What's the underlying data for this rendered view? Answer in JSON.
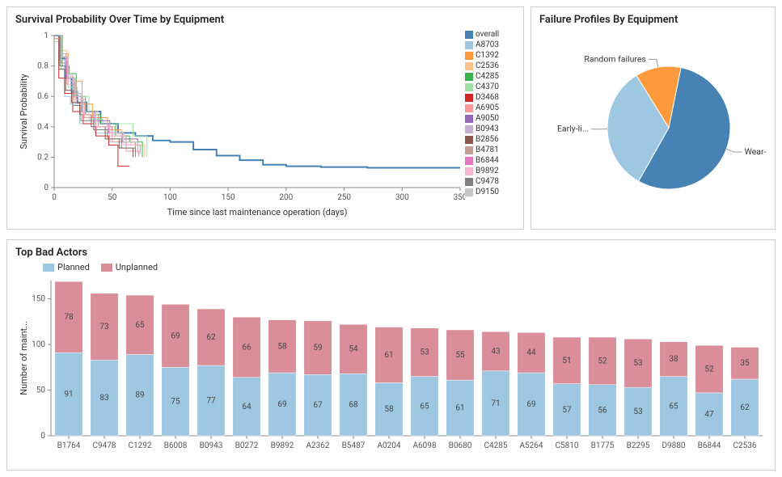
{
  "survival": {
    "title": "Survival Probability Over Time by Equipment",
    "type": "line",
    "xlabel": "Time since last maintenance operation (days)",
    "ylabel": "Survival Probability",
    "xlim": [
      0,
      350
    ],
    "xtick_step": 50,
    "ylim": [
      0,
      1
    ],
    "ytick_step": 0.2,
    "background_color": "#ffffff",
    "grid_on": false,
    "legend": [
      {
        "label": "overall",
        "color": "#4682b4"
      },
      {
        "label": "A8703",
        "color": "#9ec7e2"
      },
      {
        "label": "C1392",
        "color": "#ff9a3c"
      },
      {
        "label": "C2536",
        "color": "#ffc38a"
      },
      {
        "label": "C4285",
        "color": "#3cb44b"
      },
      {
        "label": "C4370",
        "color": "#a3e0a9"
      },
      {
        "label": "D3468",
        "color": "#d62728"
      },
      {
        "label": "A6905",
        "color": "#ff9999"
      },
      {
        "label": "A9050",
        "color": "#9467bd"
      },
      {
        "label": "B0943",
        "color": "#c5b0d5"
      },
      {
        "label": "B2856",
        "color": "#8c564b"
      },
      {
        "label": "B4781",
        "color": "#c49c94"
      },
      {
        "label": "B6844",
        "color": "#e377c2"
      },
      {
        "label": "B9892",
        "color": "#f7b6d2"
      },
      {
        "label": "C9478",
        "color": "#7f7f7f"
      },
      {
        "label": "D9150",
        "color": "#c7c7c7"
      }
    ],
    "series": [
      {
        "label": "overall",
        "color": "#4682b4",
        "width": 2.0,
        "points": [
          [
            0,
            1
          ],
          [
            5,
            0.85
          ],
          [
            10,
            0.72
          ],
          [
            15,
            0.63
          ],
          [
            20,
            0.56
          ],
          [
            28,
            0.5
          ],
          [
            40,
            0.42
          ],
          [
            55,
            0.36
          ],
          [
            70,
            0.34
          ],
          [
            85,
            0.31
          ],
          [
            100,
            0.3
          ],
          [
            120,
            0.25
          ],
          [
            140,
            0.21
          ],
          [
            160,
            0.18
          ],
          [
            180,
            0.15
          ],
          [
            200,
            0.14
          ],
          [
            230,
            0.135
          ],
          [
            270,
            0.13
          ],
          [
            310,
            0.13
          ],
          [
            350,
            0.13
          ]
        ]
      },
      {
        "label": "A8703",
        "color": "#9ec7e2",
        "width": 1.0,
        "points": [
          [
            0,
            1
          ],
          [
            4,
            0.82
          ],
          [
            9,
            0.6
          ],
          [
            14,
            0.55
          ],
          [
            22,
            0.42
          ],
          [
            35,
            0.36
          ],
          [
            48,
            0.3
          ],
          [
            60,
            0.28
          ],
          [
            72,
            0.22
          ]
        ]
      },
      {
        "label": "C1392",
        "color": "#ff9a3c",
        "width": 1.0,
        "points": [
          [
            0,
            0.98
          ],
          [
            6,
            0.88
          ],
          [
            12,
            0.7
          ],
          [
            18,
            0.7
          ],
          [
            24,
            0.55
          ],
          [
            33,
            0.46
          ],
          [
            46,
            0.38
          ],
          [
            58,
            0.3
          ],
          [
            70,
            0.25
          ]
        ]
      },
      {
        "label": "C2536",
        "color": "#ffc38a",
        "width": 1.0,
        "points": [
          [
            0,
            1
          ],
          [
            5,
            0.9
          ],
          [
            11,
            0.73
          ],
          [
            17,
            0.58
          ],
          [
            25,
            0.5
          ],
          [
            38,
            0.4
          ],
          [
            52,
            0.32
          ],
          [
            66,
            0.28
          ],
          [
            78,
            0.2
          ]
        ]
      },
      {
        "label": "C4285",
        "color": "#3cb44b",
        "width": 1.0,
        "points": [
          [
            0,
            1
          ],
          [
            7,
            0.8
          ],
          [
            13,
            0.75
          ],
          [
            19,
            0.6
          ],
          [
            27,
            0.48
          ],
          [
            40,
            0.42
          ],
          [
            53,
            0.34
          ],
          [
            65,
            0.3
          ],
          [
            76,
            0.2
          ]
        ]
      },
      {
        "label": "C4370",
        "color": "#a3e0a9",
        "width": 1.0,
        "points": [
          [
            0,
            0.96
          ],
          [
            6,
            0.78
          ],
          [
            12,
            0.66
          ],
          [
            20,
            0.6
          ],
          [
            30,
            0.45
          ],
          [
            42,
            0.42
          ],
          [
            55,
            0.42
          ],
          [
            68,
            0.34
          ],
          [
            80,
            0.2
          ]
        ]
      },
      {
        "label": "D3468",
        "color": "#d62728",
        "width": 1.0,
        "points": [
          [
            0,
            1
          ],
          [
            4,
            0.72
          ],
          [
            9,
            0.62
          ],
          [
            16,
            0.5
          ],
          [
            25,
            0.42
          ],
          [
            36,
            0.34
          ],
          [
            47,
            0.28
          ],
          [
            55,
            0.14
          ],
          [
            65,
            0.14
          ]
        ]
      },
      {
        "label": "A6905",
        "color": "#ff9999",
        "width": 1.0,
        "points": [
          [
            0,
            1
          ],
          [
            5,
            0.84
          ],
          [
            11,
            0.68
          ],
          [
            18,
            0.56
          ],
          [
            26,
            0.46
          ],
          [
            38,
            0.4
          ],
          [
            50,
            0.3
          ],
          [
            62,
            0.24
          ],
          [
            73,
            0.2
          ]
        ]
      },
      {
        "label": "A9050",
        "color": "#9467bd",
        "width": 1.0,
        "points": [
          [
            0,
            1
          ],
          [
            6,
            0.86
          ],
          [
            12,
            0.72
          ],
          [
            18,
            0.6
          ],
          [
            24,
            0.5
          ],
          [
            34,
            0.44
          ],
          [
            48,
            0.36
          ],
          [
            60,
            0.32
          ],
          [
            72,
            0.26
          ]
        ]
      },
      {
        "label": "B0943",
        "color": "#c5b0d5",
        "width": 1.0,
        "points": [
          [
            0,
            1
          ],
          [
            5,
            0.88
          ],
          [
            10,
            0.74
          ],
          [
            16,
            0.62
          ],
          [
            23,
            0.5
          ],
          [
            34,
            0.42
          ],
          [
            46,
            0.36
          ],
          [
            58,
            0.3
          ],
          [
            70,
            0.24
          ]
        ]
      },
      {
        "label": "B2856",
        "color": "#8c564b",
        "width": 1.0,
        "points": [
          [
            0,
            1
          ],
          [
            4,
            0.78
          ],
          [
            9,
            0.64
          ],
          [
            15,
            0.56
          ],
          [
            22,
            0.48
          ],
          [
            32,
            0.4
          ],
          [
            44,
            0.32
          ],
          [
            56,
            0.26
          ],
          [
            68,
            0.2
          ]
        ]
      },
      {
        "label": "B4781",
        "color": "#c49c94",
        "width": 1.0,
        "points": [
          [
            0,
            0.98
          ],
          [
            6,
            0.82
          ],
          [
            12,
            0.7
          ],
          [
            19,
            0.58
          ],
          [
            27,
            0.48
          ],
          [
            38,
            0.4
          ],
          [
            50,
            0.34
          ],
          [
            62,
            0.28
          ],
          [
            74,
            0.22
          ]
        ]
      },
      {
        "label": "B6844",
        "color": "#e377c2",
        "width": 1.0,
        "points": [
          [
            0,
            1
          ],
          [
            5,
            0.86
          ],
          [
            11,
            0.72
          ],
          [
            17,
            0.6
          ],
          [
            24,
            0.5
          ],
          [
            35,
            0.42
          ],
          [
            47,
            0.36
          ],
          [
            59,
            0.3
          ],
          [
            70,
            0.24
          ]
        ]
      },
      {
        "label": "B9892",
        "color": "#f7b6d2",
        "width": 1.0,
        "points": [
          [
            0,
            1
          ],
          [
            6,
            0.84
          ],
          [
            12,
            0.7
          ],
          [
            18,
            0.58
          ],
          [
            25,
            0.48
          ],
          [
            36,
            0.4
          ],
          [
            48,
            0.34
          ],
          [
            60,
            0.28
          ],
          [
            72,
            0.22
          ]
        ]
      },
      {
        "label": "C9478",
        "color": "#7f7f7f",
        "width": 1.0,
        "points": [
          [
            0,
            1
          ],
          [
            5,
            0.8
          ],
          [
            10,
            0.64
          ],
          [
            16,
            0.54
          ],
          [
            23,
            0.44
          ],
          [
            34,
            0.38
          ],
          [
            46,
            0.32
          ],
          [
            58,
            0.26
          ],
          [
            70,
            0.2
          ]
        ]
      },
      {
        "label": "D9150",
        "color": "#c7c7c7",
        "width": 1.0,
        "points": [
          [
            0,
            1
          ],
          [
            6,
            0.86
          ],
          [
            12,
            0.72
          ],
          [
            18,
            0.6
          ],
          [
            25,
            0.5
          ],
          [
            36,
            0.42
          ],
          [
            48,
            0.36
          ],
          [
            60,
            0.3
          ],
          [
            72,
            0.24
          ]
        ]
      }
    ]
  },
  "failure": {
    "title": "Failure Profiles By Equipment",
    "type": "pie",
    "background_color": "#ffffff",
    "slices": [
      {
        "label": "Wear-...",
        "value": 55,
        "color": "#4682b4"
      },
      {
        "label": "Early-li...",
        "value": 33,
        "color": "#9ec7e2"
      },
      {
        "label": "Random failures",
        "value": 12,
        "color": "#ff9a3c"
      }
    ],
    "label_fontsize": 10.5
  },
  "badactors": {
    "title": "Top Bad Actors",
    "type": "bar",
    "ylabel": "Number of maint...",
    "ylim": [
      0,
      170
    ],
    "ytick_step": 50,
    "background_color": "#ffffff",
    "legend": [
      {
        "label": "Planned",
        "color": "#9ec7e2"
      },
      {
        "label": "Unplanned",
        "color": "#d98e99"
      }
    ],
    "bar_width": 0.78,
    "value_label_fontsize": 10,
    "categories": [
      "B1764",
      "C9478",
      "C1292",
      "B6008",
      "B0943",
      "B0272",
      "B9892",
      "A2362",
      "B5487",
      "A0204",
      "A6098",
      "B0680",
      "C4285",
      "A5264",
      "C5810",
      "B1775",
      "B2295",
      "D9880",
      "B6844",
      "C2536"
    ],
    "stacks": [
      {
        "key": "planned",
        "color": "#9ec7e2",
        "values": [
          91,
          83,
          89,
          75,
          77,
          64,
          69,
          67,
          68,
          58,
          65,
          61,
          71,
          69,
          57,
          56,
          53,
          65,
          47,
          62
        ]
      },
      {
        "key": "unplanned",
        "color": "#d98e99",
        "values": [
          78,
          73,
          65,
          69,
          62,
          66,
          58,
          59,
          54,
          61,
          53,
          55,
          43,
          44,
          51,
          52,
          53,
          38,
          52,
          35
        ]
      }
    ]
  }
}
